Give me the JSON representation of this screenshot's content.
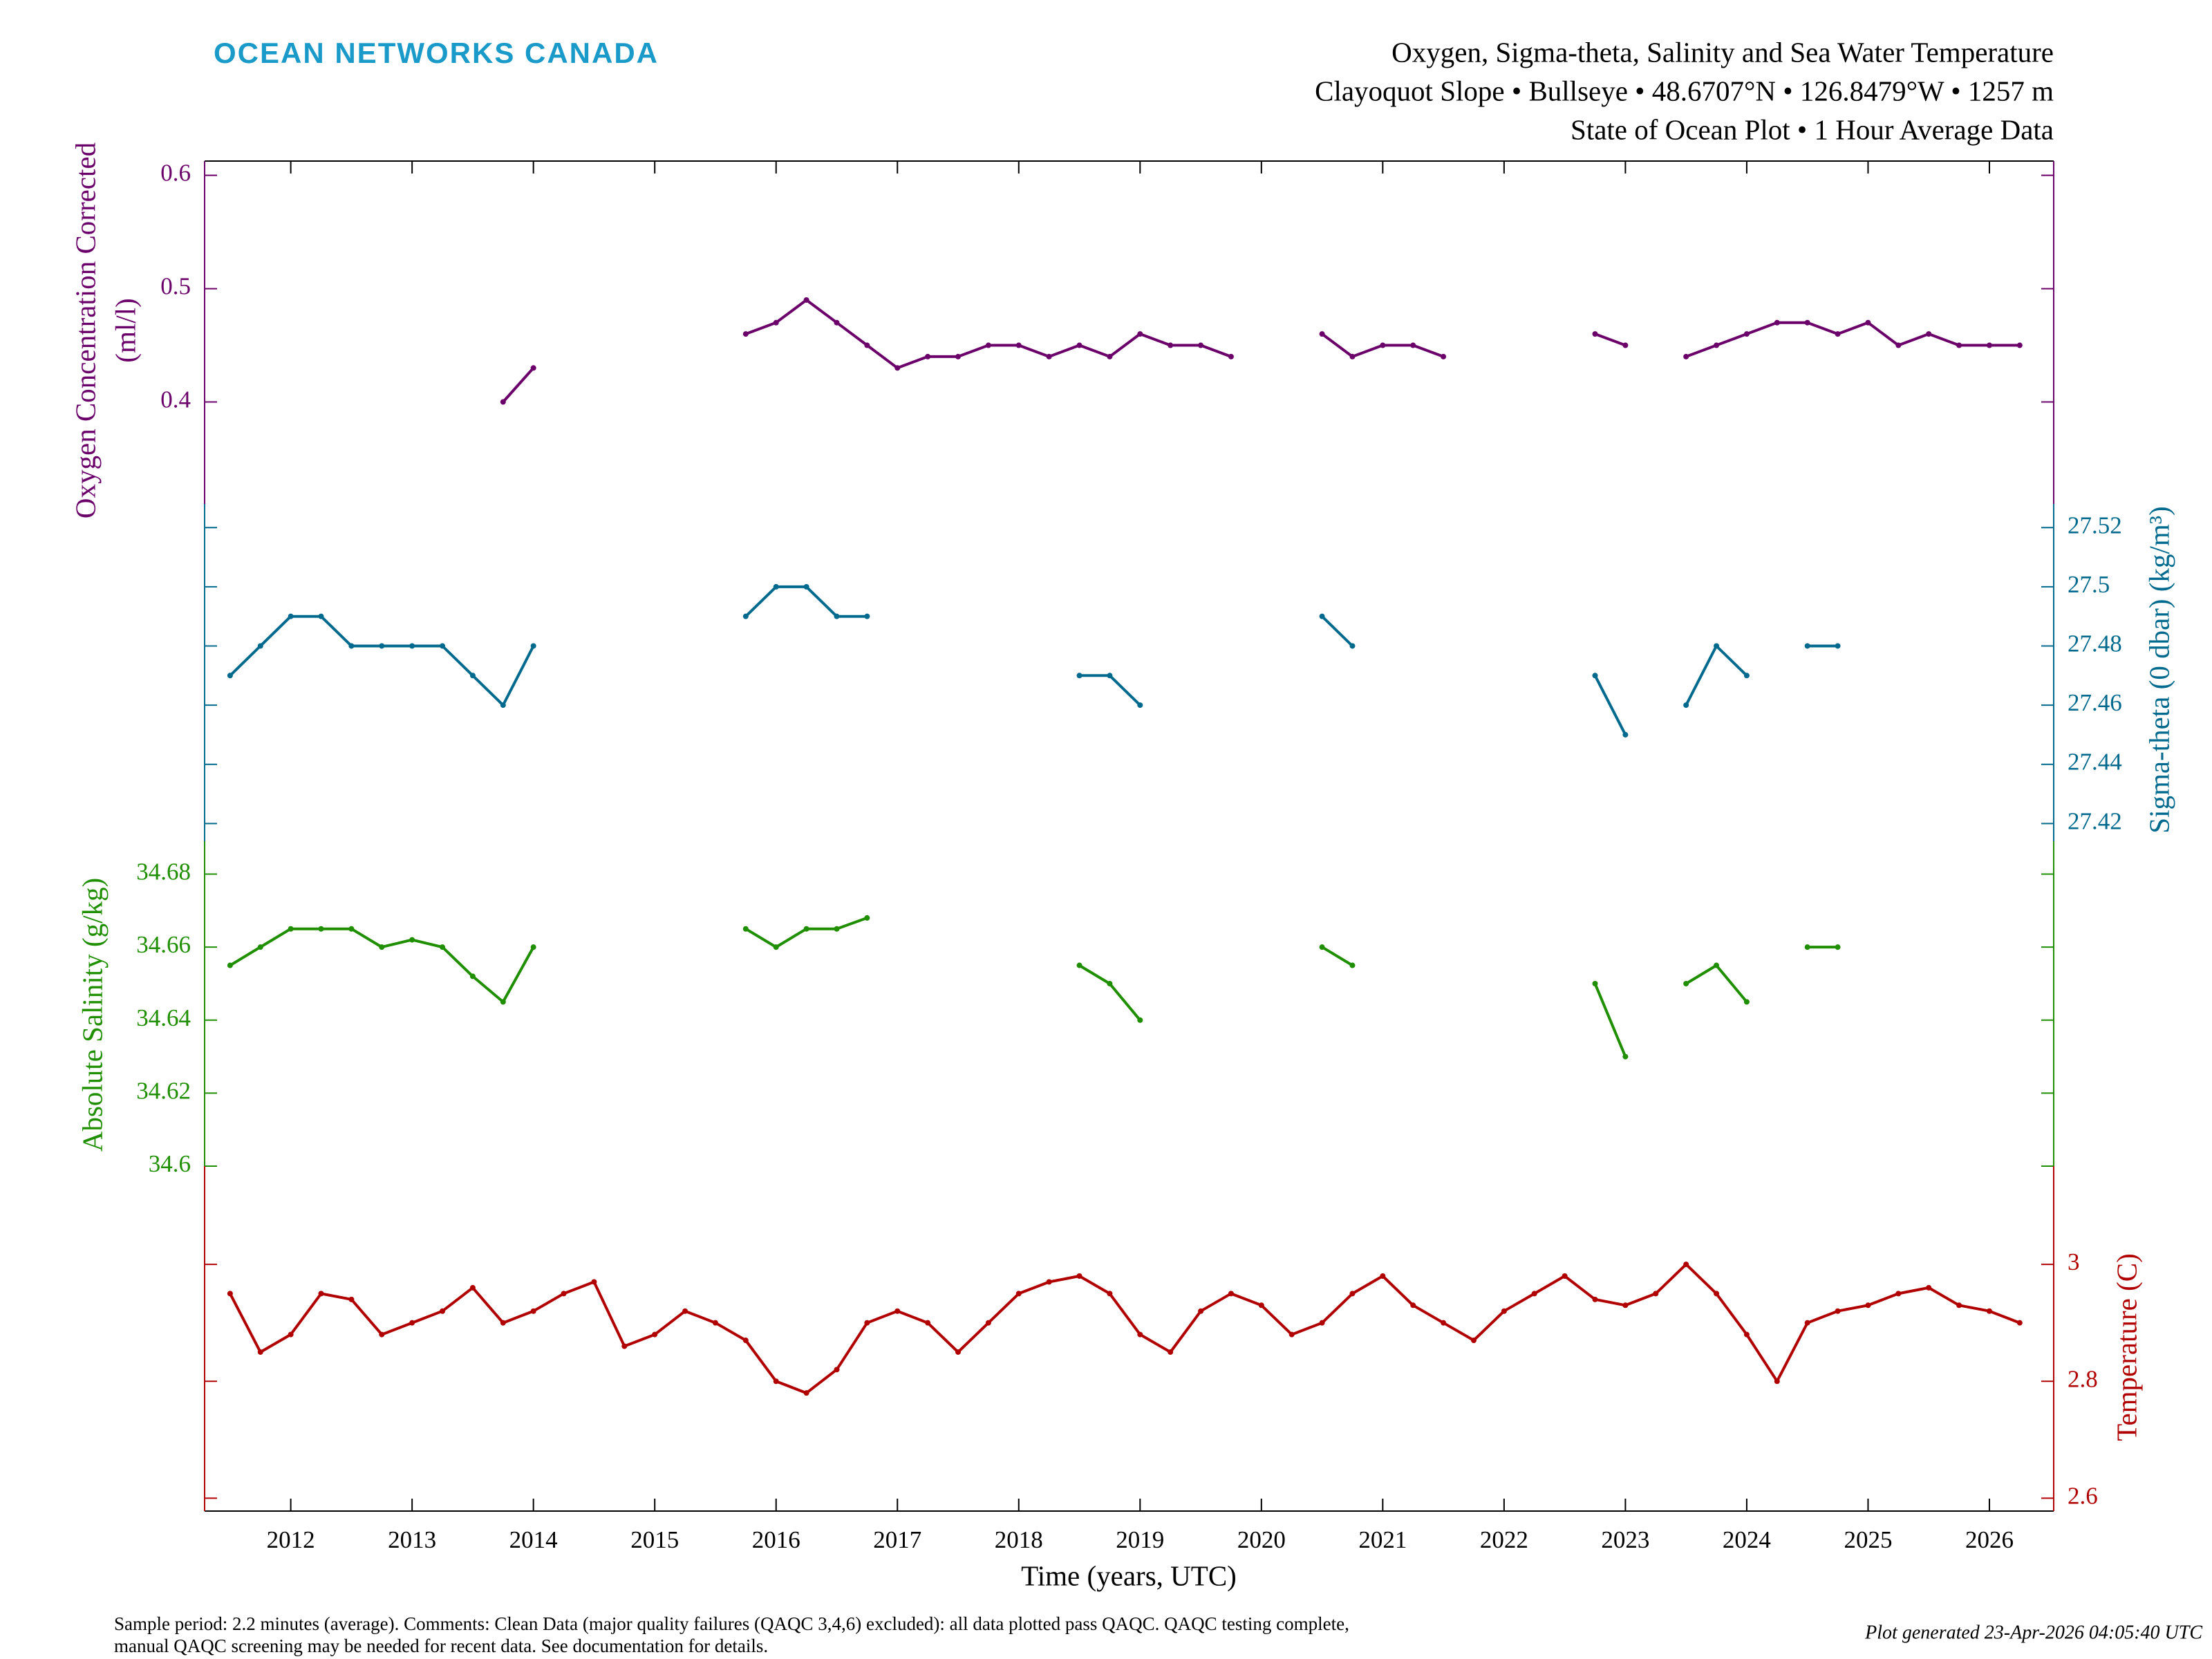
{
  "chart_data": {
    "type": "line",
    "logo": "OCEAN NETWORKS CANADA",
    "title": "Oxygen, Sigma-theta, Salinity and Sea Water Temperature",
    "subtitle": [
      "Clayoquot Slope • Bullseye • 48.6707°N • 126.8479°W • 1257 m",
      "State of Ocean Plot • 1 Hour Average Data"
    ],
    "xlabel": "Time (years, UTC)",
    "xlim": [
      2011.29,
      2026.53
    ],
    "xticks": [
      2012,
      2013,
      2014,
      2015,
      2016,
      2017,
      2018,
      2019,
      2020,
      2021,
      2022,
      2023,
      2024,
      2025,
      2026
    ],
    "x": [
      2011.5,
      2011.75,
      2012.0,
      2012.25,
      2012.5,
      2012.75,
      2013.0,
      2013.25,
      2013.5,
      2013.75,
      2014.0,
      2014.25,
      2014.5,
      2014.75,
      2015.0,
      2015.25,
      2015.5,
      2015.75,
      2016.0,
      2016.25,
      2016.5,
      2016.75,
      2017.0,
      2017.25,
      2017.5,
      2017.75,
      2018.0,
      2018.25,
      2018.5,
      2018.75,
      2019.0,
      2019.25,
      2019.5,
      2019.75,
      2020.0,
      2020.25,
      2020.5,
      2020.75,
      2021.0,
      2021.25,
      2021.5,
      2021.75,
      2022.0,
      2022.25,
      2022.5,
      2022.75,
      2023.0,
      2023.25,
      2023.5,
      2023.75,
      2024.0,
      2024.25,
      2024.5,
      2024.75,
      2025.0,
      2025.25,
      2025.5,
      2025.75,
      2026.0,
      2026.25
    ],
    "series": [
      {
        "name": [
          "Oxygen Concentration Corrected",
          "(ml/l)"
        ],
        "label_side": "left",
        "color": "#6b006b",
        "ylim": [
          0.31,
          0.6126
        ],
        "yticks": [
          0.4,
          0.5,
          0.6
        ],
        "values": [
          null,
          null,
          null,
          null,
          null,
          null,
          null,
          null,
          null,
          0.4,
          0.43,
          null,
          null,
          null,
          null,
          null,
          null,
          0.46,
          0.47,
          0.49,
          0.47,
          0.45,
          0.43,
          0.44,
          0.44,
          0.45,
          0.45,
          0.44,
          0.45,
          0.44,
          0.46,
          0.45,
          0.45,
          0.44,
          null,
          null,
          0.46,
          0.44,
          0.45,
          0.45,
          0.44,
          null,
          null,
          null,
          null,
          0.46,
          0.45,
          null,
          0.44,
          0.45,
          0.46,
          0.47,
          0.47,
          0.46,
          0.47,
          0.45,
          0.46,
          0.45,
          0.45,
          0.45
        ]
      },
      {
        "name": [
          "Sigma-theta (0 dbar) (kg/m³)"
        ],
        "label_side": "right",
        "color": "#006a8e",
        "ylim": [
          27.414,
          27.528
        ],
        "yticks": [
          27.42,
          27.44,
          27.46,
          27.48,
          27.5,
          27.52
        ],
        "values": [
          27.47,
          27.48,
          27.49,
          27.49,
          27.48,
          27.48,
          27.48,
          27.48,
          27.47,
          27.46,
          27.48,
          null,
          null,
          null,
          null,
          null,
          null,
          27.49,
          27.5,
          27.5,
          27.49,
          27.49,
          null,
          null,
          null,
          null,
          null,
          null,
          27.47,
          27.47,
          27.46,
          null,
          null,
          null,
          null,
          null,
          27.49,
          27.48,
          null,
          null,
          null,
          null,
          null,
          null,
          null,
          27.47,
          27.45,
          null,
          27.46,
          27.48,
          27.47,
          null,
          27.48,
          27.48,
          null,
          null,
          null,
          null,
          null,
          null
        ]
      },
      {
        "name": [
          "Absolute Salinity (g/kg)"
        ],
        "label_side": "left",
        "color": "#1f8f00",
        "ylim": [
          34.6,
          34.689
        ],
        "yticks": [
          34.6,
          34.62,
          34.64,
          34.66,
          34.68
        ],
        "values": [
          34.655,
          34.66,
          34.665,
          34.665,
          34.665,
          34.66,
          34.662,
          34.66,
          34.652,
          34.645,
          34.66,
          null,
          null,
          null,
          null,
          null,
          null,
          34.665,
          34.66,
          34.665,
          34.665,
          34.668,
          null,
          null,
          null,
          null,
          null,
          null,
          34.655,
          34.65,
          34.64,
          null,
          null,
          null,
          null,
          null,
          34.66,
          34.655,
          null,
          null,
          null,
          null,
          null,
          null,
          null,
          34.65,
          34.63,
          null,
          34.65,
          34.655,
          34.645,
          null,
          34.66,
          34.66,
          null,
          null,
          null,
          null,
          null,
          null
        ]
      },
      {
        "name": [
          "Temperature (C)"
        ],
        "label_side": "right",
        "color": "#b00000",
        "ylim": [
          2.578,
          3.168
        ],
        "yticks": [
          2.6,
          2.8,
          3
        ],
        "values": [
          2.95,
          2.85,
          2.88,
          2.95,
          2.94,
          2.88,
          2.9,
          2.92,
          2.96,
          2.9,
          2.92,
          2.95,
          2.97,
          2.86,
          2.88,
          2.92,
          2.9,
          2.87,
          2.8,
          2.78,
          2.82,
          2.9,
          2.92,
          2.9,
          2.85,
          2.9,
          2.95,
          2.97,
          2.98,
          2.95,
          2.88,
          2.85,
          2.92,
          2.95,
          2.93,
          2.88,
          2.9,
          2.95,
          2.98,
          2.93,
          2.9,
          2.87,
          2.92,
          2.95,
          2.98,
          2.94,
          2.93,
          2.95,
          3.0,
          2.95,
          2.88,
          2.8,
          2.9,
          2.92,
          2.93,
          2.95,
          2.96,
          2.93,
          2.92,
          2.9
        ]
      }
    ],
    "footnote": [
      "Sample period: 2.2 minutes (average). Comments: Clean Data (major quality failures (QAQC 3,4,6) excluded): all data plotted pass QAQC. QAQC testing complete,",
      "manual QAQC screening may be needed for recent data. See documentation for details."
    ],
    "generated": "Plot generated 23-Apr-2026 04:05:40 UTC"
  }
}
